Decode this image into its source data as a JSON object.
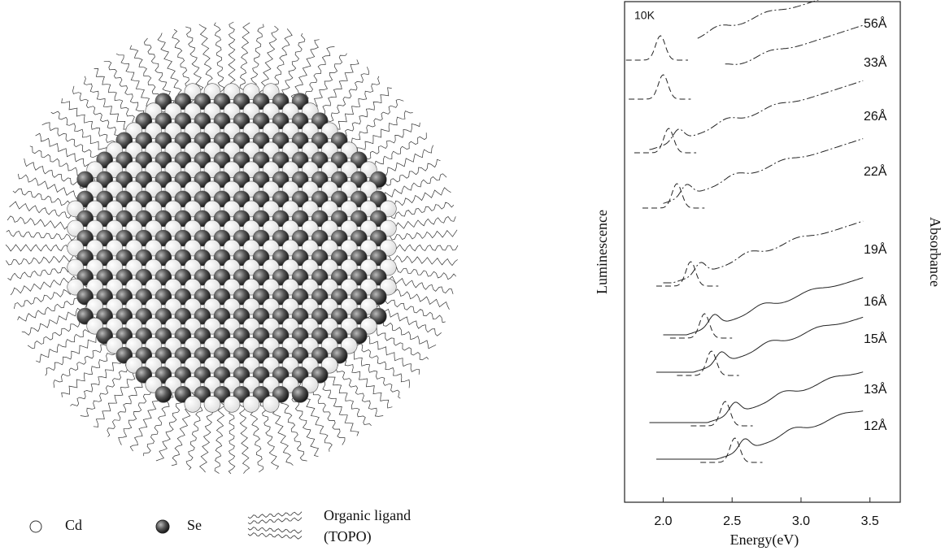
{
  "diagram": {
    "legend": {
      "cd": "Cd",
      "se": "Se",
      "ligand_line1": "Organic ligand",
      "ligand_line2": "(TOPO)"
    }
  },
  "plot": {
    "temperature": "10K",
    "x_label": "Energy(eV)",
    "y_label_left": "Luminescence",
    "y_label_right": "Absorbance",
    "xlim": [
      1.72,
      3.72
    ],
    "xticks": [
      {
        "value": 2,
        "label": "2.0"
      },
      2.5,
      {
        "value": 3,
        "label": "3.0"
      },
      3.5
    ],
    "sizes": [
      "56Å",
      "33Å",
      "26Å",
      "22Å",
      "19Å",
      "16Å",
      "15Å",
      "13Å",
      "12Å"
    ]
  }
}
